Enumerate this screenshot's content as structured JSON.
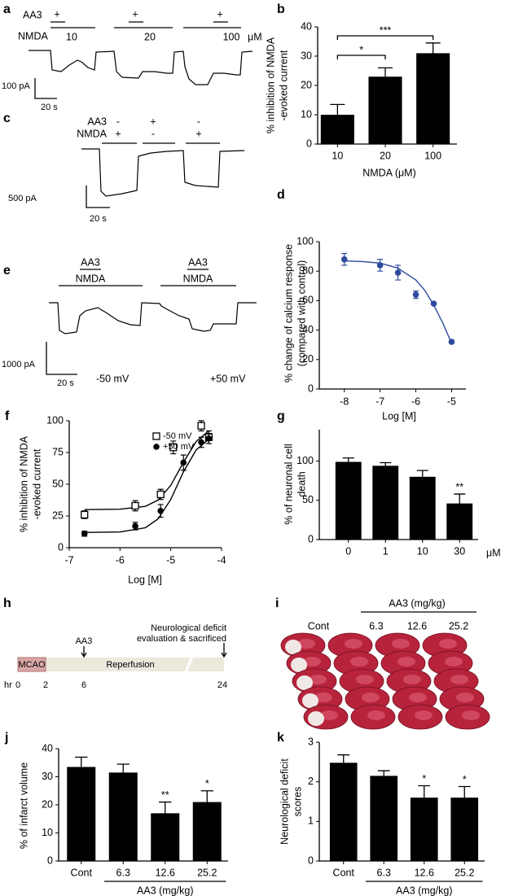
{
  "chart_data": [
    {
      "type": "bar",
      "panel": "b",
      "categories": [
        "10",
        "20",
        "100"
      ],
      "values": [
        10,
        23,
        31
      ],
      "errors": [
        3.5,
        3,
        3.5
      ],
      "color": "#000000",
      "ylim": [
        0,
        40
      ],
      "yticks": [
        0,
        10,
        20,
        30,
        40
      ],
      "x_label": "NMDA (μM)",
      "y_label": [
        "% inhibition of NMDA",
        "-evoked current"
      ],
      "annotations": [
        "*",
        "***"
      ]
    },
    {
      "type": "line",
      "panel": "d",
      "x": [
        -8,
        -7,
        -6.5,
        -6,
        -5.5,
        -5
      ],
      "values": [
        88,
        84,
        79,
        64,
        58,
        32
      ],
      "errors": [
        4,
        4,
        5,
        2.5,
        0,
        0
      ],
      "color": "#2e4a9e",
      "fit": {
        "x": [
          -8,
          -7.5,
          -7,
          -6.5,
          -6,
          -5.75,
          -5.5,
          -5.25,
          -5
        ],
        "values": [
          87,
          86.5,
          85.5,
          82,
          74,
          67,
          57,
          45,
          31
        ]
      },
      "xlim": [
        -8.7,
        -4.6
      ],
      "xticks": [
        -8,
        -7,
        -6,
        -5
      ],
      "ylim": [
        0,
        100
      ],
      "yticks": [
        0,
        20,
        40,
        60,
        80,
        100
      ],
      "x_label": "Log [M]",
      "y_label": [
        "% change of calcium response",
        "(compared with control)"
      ]
    },
    {
      "type": "line",
      "panel": "f",
      "series": [
        {
          "name": "-50 mV",
          "marker": "square",
          "color": "#000000",
          "x": [
            -6.7,
            -5.7,
            -5.2,
            -4.95,
            -4.4,
            -4.25
          ],
          "values": [
            26,
            33,
            42,
            79,
            96,
            87
          ],
          "errors": [
            3,
            4,
            4,
            5,
            4,
            5
          ],
          "fit": {
            "x": [
              -6.7,
              -6,
              -5.5,
              -5.25,
              -5,
              -4.75,
              -4.5,
              -4.25
            ],
            "values": [
              30,
              30.3,
              32.6,
              37.5,
              49.1,
              67.3,
              83.6,
              92.1
            ]
          }
        },
        {
          "name": "+50 mV",
          "marker": "circle",
          "color": "#000000",
          "x": [
            -6.7,
            -5.7,
            -5.2,
            -4.75,
            -4.4,
            -4.25
          ],
          "values": [
            11,
            17,
            29,
            67,
            83,
            86
          ],
          "errors": [
            2,
            3,
            5,
            6,
            4,
            4
          ],
          "fit": {
            "x": [
              -6.7,
              -6,
              -5.5,
              -5.25,
              -5,
              -4.75,
              -4.5,
              -4.25
            ],
            "values": [
              12,
              12.4,
              15.7,
              22.7,
              38,
              59.8,
              77,
              85.4
            ]
          }
        }
      ],
      "xlim": [
        -7,
        -4
      ],
      "xticks": [
        -7,
        -6,
        -5,
        -4
      ],
      "ylim": [
        0,
        100
      ],
      "yticks": [
        0,
        25,
        50,
        75,
        100
      ],
      "x_label": "Log [M]",
      "y_label": [
        "% inhibition of NMDA",
        "-evoked current"
      ]
    },
    {
      "type": "bar",
      "panel": "g",
      "categories": [
        "0",
        "1",
        "10",
        "30"
      ],
      "values": [
        99,
        94,
        80,
        46
      ],
      "errors": [
        5,
        4,
        8,
        12
      ],
      "color": "#000000",
      "ylim": [
        0,
        140
      ],
      "yticks": [
        0,
        50,
        100
      ],
      "unit": "μM",
      "y_label": [
        "% of neuronal cell",
        "death"
      ],
      "annotations": [
        "**"
      ]
    },
    {
      "type": "bar",
      "panel": "j",
      "categories": [
        "Cont",
        "6.3",
        "12.6",
        "25.2"
      ],
      "values": [
        33.5,
        31.5,
        17,
        21
      ],
      "errors": [
        3.5,
        3,
        4,
        4
      ],
      "color": "#000000",
      "ylim": [
        0,
        40
      ],
      "yticks": [
        0,
        10,
        20,
        30,
        40
      ],
      "x_label": "AA3 (mg/kg)",
      "y_label": [
        "% of infarct volume"
      ],
      "annotations": [
        "**",
        "*"
      ]
    },
    {
      "type": "bar",
      "panel": "k",
      "categories": [
        "Cont",
        "6.3",
        "12.6",
        "25.2"
      ],
      "values": [
        2.48,
        2.15,
        1.6,
        1.6
      ],
      "errors": [
        0.2,
        0.13,
        0.3,
        0.28
      ],
      "color": "#000000",
      "ylim": [
        0,
        3
      ],
      "yticks": [
        0,
        1,
        2,
        3
      ],
      "x_label": "AA3 (mg/kg)",
      "y_label": [
        "Neurological deficit",
        "scores"
      ],
      "annotations": [
        "*",
        "*"
      ]
    }
  ],
  "figure_text": {
    "panel_a": {
      "label": "a",
      "aa3": "AA3",
      "aa3_marks": [
        "+",
        "+",
        "+"
      ],
      "nmda": "NMDA",
      "concentrations": [
        "10",
        "20",
        "100"
      ],
      "unit": "μM",
      "scale_current": "100 pA",
      "scale_time": "20 s"
    },
    "panel_c": {
      "label": "c",
      "aa3": "AA3",
      "aa3_marks": [
        "-",
        "+",
        "-"
      ],
      "nmda": "NMDA",
      "nmda_marks": [
        "+",
        "-",
        "+"
      ],
      "scale_current": "500 pA",
      "scale_time": "20 s"
    },
    "panel_e": {
      "label": "e",
      "aa3": [
        "AA3",
        "AA3"
      ],
      "nmda": [
        "NMDA",
        "NMDA"
      ],
      "scale_current": "1000 pA",
      "scale_time": "20 s",
      "voltages": [
        "-50 mV",
        "+50 mV"
      ]
    },
    "panel_h": {
      "label": "h",
      "hr": "hr",
      "times": [
        "0",
        "2",
        "6",
        "24"
      ],
      "mcao": "MCAO",
      "reperfusion": "Reperfusion",
      "aa3": "AA3",
      "endpoint": [
        "Neurological deficit",
        "evaluation & sacrificed"
      ]
    },
    "panel_i": {
      "label": "i",
      "dose_label": "AA3 (mg/kg)",
      "groups": [
        "Cont",
        "6.3",
        "12.6",
        "25.2"
      ]
    }
  }
}
